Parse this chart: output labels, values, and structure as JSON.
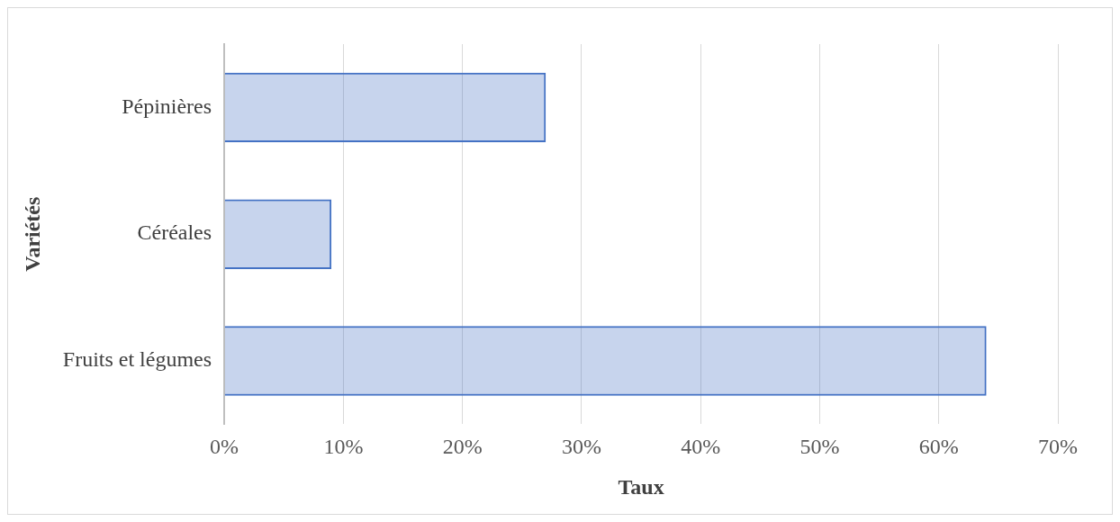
{
  "chart_data": {
    "type": "bar",
    "orientation": "horizontal",
    "xlabel": "Taux",
    "ylabel": "Variétés",
    "categories": [
      "Pépinières",
      "Céréales",
      "Fruits et légumes"
    ],
    "values": [
      27,
      9,
      64
    ],
    "color": "#4472c4",
    "xlim": [
      0,
      70
    ],
    "xticks": [
      {
        "value": 0,
        "label": "0%"
      },
      {
        "value": 10,
        "label": "10%"
      },
      {
        "value": 20,
        "label": "20%"
      },
      {
        "value": 30,
        "label": "30%"
      },
      {
        "value": 40,
        "label": "40%"
      },
      {
        "value": 50,
        "label": "50%"
      },
      {
        "value": 60,
        "label": "60%"
      },
      {
        "value": 70,
        "label": "70%"
      }
    ],
    "grid": "x",
    "legend": false
  }
}
